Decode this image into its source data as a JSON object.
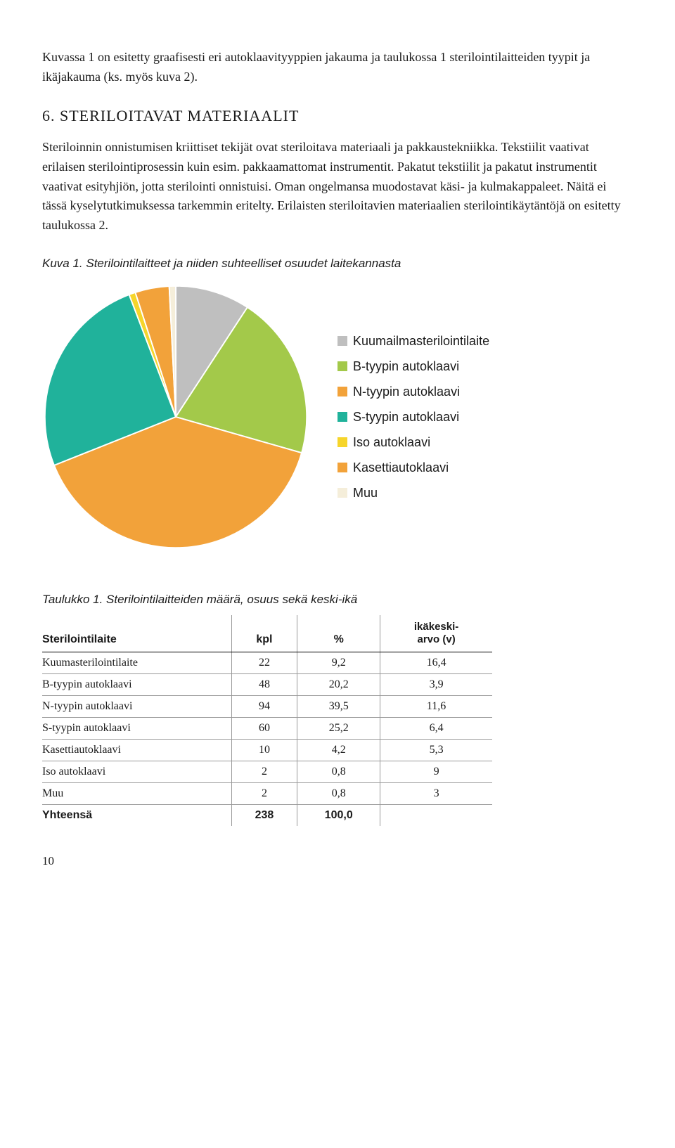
{
  "intro_para": "Kuvassa 1 on esitetty graafisesti eri autoklaavityyppien jakauma ja taulukossa 1 sterilointilaitteiden tyypit ja ikäjakauma (ks. myös kuva 2).",
  "section_heading": "6. STERILOITAVAT MATERIAALIT",
  "section_body": "Steriloinnin onnistumisen kriittiset tekijät ovat steriloitava materiaali ja pakkaustekniikka. Tekstiilit vaativat erilaisen sterilointiprosessin kuin esim. pakkaamattomat instrumentit. Pakatut tekstiilit ja pakatut instrumentit vaativat esityhjiön, jotta sterilointi onnistuisi. Oman ongelmansa muodostavat käsi- ja kulmakappaleet. Näitä ei tässä kyselytutkimuksessa tarkemmin eritelty. Erilaisten steriloitavien materiaalien sterilointikäytäntöjä on esitetty taulukossa 2.",
  "figure_caption": "Kuva 1. Sterilointilaitteet ja niiden suhteelliset osuudet laitekannasta",
  "chart": {
    "type": "pie",
    "background_color": "#ffffff",
    "slices": [
      {
        "label": "Kuumailmasterilointilaite",
        "value": 9.2,
        "color": "#bfbfbf"
      },
      {
        "label": "B-tyypin autoklaavi",
        "value": 20.2,
        "color": "#a3c94a"
      },
      {
        "label": "N-tyypin autoklaavi",
        "value": 39.5,
        "color": "#f2a23a"
      },
      {
        "label": "S-tyypin autoklaavi",
        "value": 25.2,
        "color": "#20b29b"
      },
      {
        "label": "Iso autoklaavi",
        "value": 0.8,
        "color": "#f6d52b"
      },
      {
        "label": "Kasettiautoklaavi",
        "value": 4.2,
        "color": "#f2a23a"
      },
      {
        "label": "Muu",
        "value": 0.8,
        "color": "#f5eeda"
      }
    ],
    "legend_swatch_size": 14,
    "legend_fontsize": 18,
    "start_angle_deg": -90
  },
  "table_caption": "Taulukko 1. Sterilointilaitteiden määrä, osuus sekä keski-ikä",
  "table": {
    "columns": [
      "Sterilointilaite",
      "kpl",
      "%",
      "ikäkeski-arvo (v)"
    ],
    "col_age_line1": "ikäkeski-",
    "col_age_line2": "arvo (v)",
    "rows": [
      [
        "Kuumasterilointilaite",
        "22",
        "9,2",
        "16,4"
      ],
      [
        "B-tyypin autoklaavi",
        "48",
        "20,2",
        "3,9"
      ],
      [
        "N-tyypin autoklaavi",
        "94",
        "39,5",
        "11,6"
      ],
      [
        "S-tyypin autoklaavi",
        "60",
        "25,2",
        "6,4"
      ],
      [
        "Kasettiautoklaavi",
        "10",
        "4,2",
        "5,3"
      ],
      [
        "Iso autoklaavi",
        "2",
        "0,8",
        "9"
      ],
      [
        "Muu",
        "2",
        "0,8",
        "3"
      ]
    ],
    "total_row": [
      "Yhteensä",
      "238",
      "100,0",
      ""
    ]
  },
  "page_number": "10"
}
